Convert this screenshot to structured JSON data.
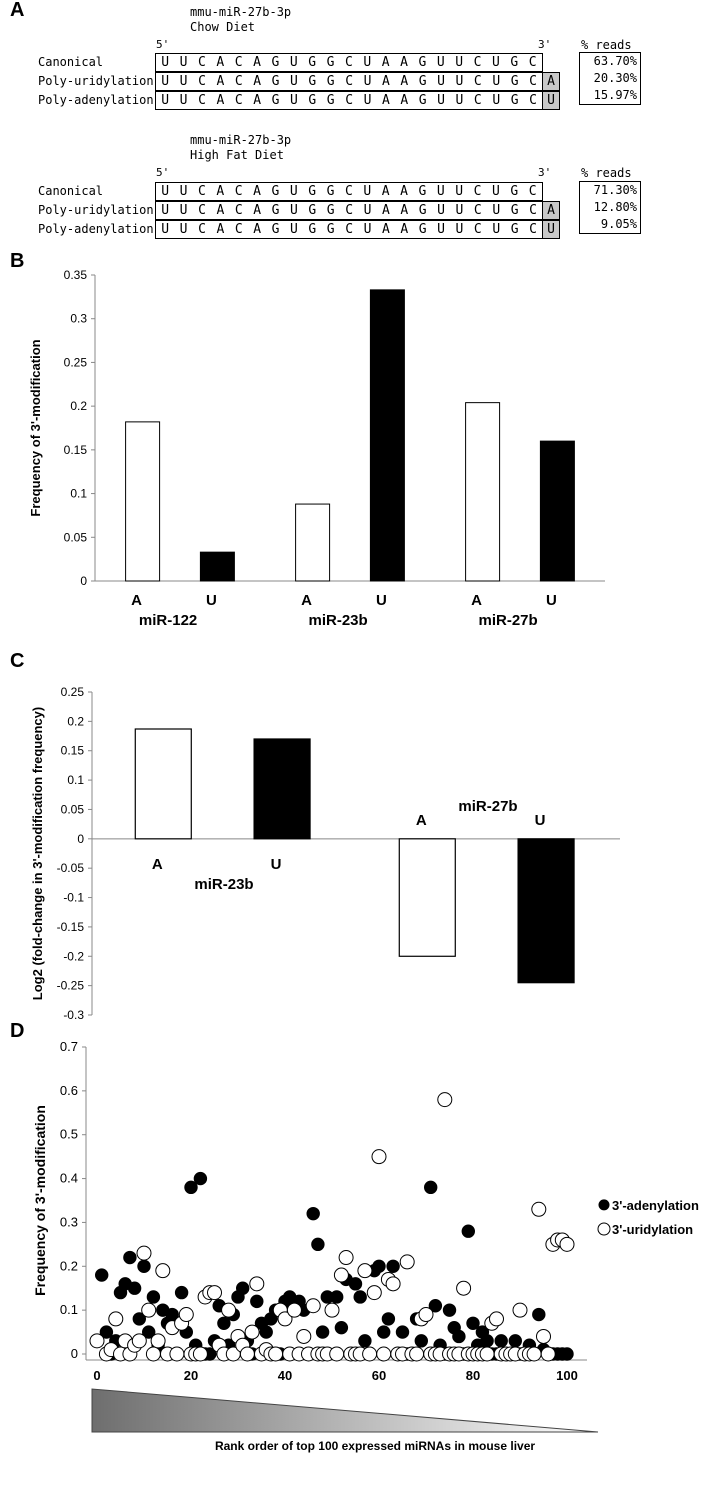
{
  "panelA": {
    "letter": "A",
    "blocks": [
      {
        "title_line1": "mmu-miR-27b-3p",
        "title_line2": "Chow Diet",
        "five_prime": "5'",
        "three_prime": "3'",
        "pct_header": "% reads",
        "rows": [
          {
            "label": "Canonical",
            "mod": "",
            "pct": "63.70%"
          },
          {
            "label": "Poly-uridylation",
            "mod": "A",
            "pct": "20.30%"
          },
          {
            "label": "Poly-adenylation",
            "mod": "U",
            "pct": "15.97%"
          }
        ]
      },
      {
        "title_line1": "mmu-miR-27b-3p",
        "title_line2": "High Fat Diet",
        "five_prime": "5'",
        "three_prime": "3'",
        "pct_header": "% reads",
        "rows": [
          {
            "label": "Canonical",
            "mod": "",
            "pct": "71.30%"
          },
          {
            "label": "Poly-uridylation",
            "mod": "A",
            "pct": "12.80%"
          },
          {
            "label": "Poly-adenylation",
            "mod": "U",
            "pct": "9.05%"
          }
        ]
      }
    ],
    "sequence": [
      "U",
      "U",
      "C",
      "A",
      "C",
      "A",
      "G",
      "U",
      "G",
      "G",
      "C",
      "U",
      "A",
      "A",
      "G",
      "U",
      "U",
      "C",
      "U",
      "G",
      "C"
    ]
  },
  "chart_data": [
    {
      "panel": "B",
      "type": "bar",
      "ylabel": "Frequency of 3'-modification",
      "ylim": [
        0,
        0.35
      ],
      "yticks": [
        "0",
        "0.05",
        "0.1",
        "0.15",
        "0.2",
        "0.25",
        "0.3",
        "0.35"
      ],
      "groups": [
        "miR-122",
        "miR-23b",
        "miR-27b"
      ],
      "series": [
        {
          "name": "A",
          "fill": "#ffffff",
          "values": [
            0.182,
            0.088,
            0.204
          ]
        },
        {
          "name": "U",
          "fill": "#000000",
          "values": [
            0.033,
            0.333,
            0.16
          ]
        }
      ]
    },
    {
      "panel": "C",
      "type": "bar",
      "ylabel": "Log2 (fold-change in 3'-modification frequency)",
      "ylim": [
        -0.3,
        0.25
      ],
      "yticks": [
        "0.25",
        "0.2",
        "0.15",
        "0.1",
        "0.05",
        "0",
        "-0.05",
        "-0.1",
        "-0.15",
        "-0.2",
        "-0.25",
        "-0.3"
      ],
      "groups": [
        "miR-23b",
        "miR-27b"
      ],
      "series": [
        {
          "name": "A",
          "fill": "#ffffff",
          "values": [
            0.187,
            -0.2
          ]
        },
        {
          "name": "U",
          "fill": "#000000",
          "values": [
            0.17,
            -0.245
          ]
        }
      ]
    },
    {
      "panel": "D",
      "type": "scatter",
      "ylabel": "Frequency of 3'-modification",
      "xlabel": "Rank order of top 100 expressed miRNAs in mouse liver",
      "xlim": [
        0,
        100
      ],
      "ylim": [
        0,
        0.7
      ],
      "xticks": [
        "0",
        "20",
        "40",
        "60",
        "80",
        "100"
      ],
      "yticks": [
        "0",
        "0.1",
        "0.2",
        "0.3",
        "0.4",
        "0.5",
        "0.6",
        "0.7"
      ],
      "legend_position": "right",
      "series": [
        {
          "name": "3'-adenylation",
          "marker": "filled",
          "points": [
            [
              1,
              0.18
            ],
            [
              2,
              0.05
            ],
            [
              3,
              0.0
            ],
            [
              4,
              0.03
            ],
            [
              5,
              0.14
            ],
            [
              6,
              0.16
            ],
            [
              7,
              0.22
            ],
            [
              8,
              0.15
            ],
            [
              9,
              0.08
            ],
            [
              10,
              0.2
            ],
            [
              11,
              0.05
            ],
            [
              12,
              0.13
            ],
            [
              13,
              0.02
            ],
            [
              14,
              0.1
            ],
            [
              15,
              0.07
            ],
            [
              16,
              0.09
            ],
            [
              17,
              0.0
            ],
            [
              18,
              0.14
            ],
            [
              19,
              0.05
            ],
            [
              20,
              0.38
            ],
            [
              21,
              0.02
            ],
            [
              22,
              0.4
            ],
            [
              23,
              0.0
            ],
            [
              24,
              0.0
            ],
            [
              25,
              0.03
            ],
            [
              26,
              0.11
            ],
            [
              27,
              0.07
            ],
            [
              28,
              0.02
            ],
            [
              29,
              0.09
            ],
            [
              30,
              0.13
            ],
            [
              31,
              0.15
            ],
            [
              32,
              0.03
            ],
            [
              33,
              0.0
            ],
            [
              34,
              0.12
            ],
            [
              35,
              0.07
            ],
            [
              36,
              0.05
            ],
            [
              37,
              0.08
            ],
            [
              38,
              0.1
            ],
            [
              39,
              0.0
            ],
            [
              40,
              0.12
            ],
            [
              41,
              0.13
            ],
            [
              42,
              0.11
            ],
            [
              43,
              0.12
            ],
            [
              44,
              0.1
            ],
            [
              45,
              0.0
            ],
            [
              46,
              0.32
            ],
            [
              47,
              0.25
            ],
            [
              48,
              0.05
            ],
            [
              49,
              0.13
            ],
            [
              50,
              0.1
            ],
            [
              51,
              0.13
            ],
            [
              52,
              0.06
            ],
            [
              53,
              0.17
            ],
            [
              54,
              0.0
            ],
            [
              55,
              0.16
            ],
            [
              56,
              0.13
            ],
            [
              57,
              0.03
            ],
            [
              58,
              0.0
            ],
            [
              59,
              0.19
            ],
            [
              60,
              0.2
            ],
            [
              61,
              0.05
            ],
            [
              62,
              0.08
            ],
            [
              63,
              0.2
            ],
            [
              64,
              0.0
            ],
            [
              65,
              0.05
            ],
            [
              66,
              0.0
            ],
            [
              67,
              0.0
            ],
            [
              68,
              0.08
            ],
            [
              69,
              0.03
            ],
            [
              70,
              0.09
            ],
            [
              71,
              0.38
            ],
            [
              72,
              0.11
            ],
            [
              73,
              0.02
            ],
            [
              74,
              0.0
            ],
            [
              75,
              0.1
            ],
            [
              76,
              0.06
            ],
            [
              77,
              0.04
            ],
            [
              78,
              0.0
            ],
            [
              79,
              0.28
            ],
            [
              80,
              0.07
            ],
            [
              81,
              0.02
            ],
            [
              82,
              0.05
            ],
            [
              83,
              0.03
            ],
            [
              84,
              0.0
            ],
            [
              85,
              0.0
            ],
            [
              86,
              0.03
            ],
            [
              87,
              0.0
            ],
            [
              88,
              0.0
            ],
            [
              89,
              0.03
            ],
            [
              90,
              0.0
            ],
            [
              91,
              0.0
            ],
            [
              92,
              0.02
            ],
            [
              93,
              0.0
            ],
            [
              94,
              0.09
            ],
            [
              95,
              0.01
            ],
            [
              96,
              0.0
            ],
            [
              97,
              0.0
            ],
            [
              98,
              0.0
            ],
            [
              99,
              0.0
            ],
            [
              100,
              0.0
            ]
          ]
        },
        {
          "name": "3'-uridylation",
          "marker": "open",
          "points": [
            [
              0,
              0.03
            ],
            [
              2,
              0.0
            ],
            [
              3,
              0.01
            ],
            [
              4,
              0.08
            ],
            [
              5,
              0.0
            ],
            [
              6,
              0.03
            ],
            [
              7,
              0.0
            ],
            [
              8,
              0.02
            ],
            [
              9,
              0.03
            ],
            [
              10,
              0.23
            ],
            [
              11,
              0.1
            ],
            [
              12,
              0.0
            ],
            [
              13,
              0.03
            ],
            [
              14,
              0.19
            ],
            [
              15,
              0.0
            ],
            [
              16,
              0.06
            ],
            [
              17,
              0.0
            ],
            [
              18,
              0.07
            ],
            [
              19,
              0.09
            ],
            [
              20,
              0.0
            ],
            [
              21,
              0.0
            ],
            [
              22,
              0.0
            ],
            [
              23,
              0.13
            ],
            [
              24,
              0.14
            ],
            [
              25,
              0.14
            ],
            [
              26,
              0.02
            ],
            [
              27,
              0.0
            ],
            [
              28,
              0.1
            ],
            [
              29,
              0.0
            ],
            [
              30,
              0.04
            ],
            [
              31,
              0.02
            ],
            [
              32,
              0.0
            ],
            [
              33,
              0.05
            ],
            [
              34,
              0.16
            ],
            [
              35,
              0.0
            ],
            [
              36,
              0.01
            ],
            [
              37,
              0.0
            ],
            [
              38,
              0.0
            ],
            [
              39,
              0.1
            ],
            [
              40,
              0.08
            ],
            [
              41,
              0.0
            ],
            [
              42,
              0.1
            ],
            [
              43,
              0.0
            ],
            [
              44,
              0.04
            ],
            [
              45,
              0.0
            ],
            [
              46,
              0.11
            ],
            [
              47,
              0.0
            ],
            [
              48,
              0.0
            ],
            [
              49,
              0.0
            ],
            [
              50,
              0.1
            ],
            [
              51,
              0.0
            ],
            [
              52,
              0.18
            ],
            [
              53,
              0.22
            ],
            [
              54,
              0.0
            ],
            [
              55,
              0.0
            ],
            [
              56,
              0.0
            ],
            [
              57,
              0.19
            ],
            [
              58,
              0.0
            ],
            [
              59,
              0.14
            ],
            [
              60,
              0.45
            ],
            [
              61,
              0.0
            ],
            [
              62,
              0.17
            ],
            [
              63,
              0.16
            ],
            [
              64,
              0.0
            ],
            [
              65,
              0.0
            ],
            [
              66,
              0.21
            ],
            [
              67,
              0.0
            ],
            [
              68,
              0.0
            ],
            [
              69,
              0.08
            ],
            [
              70,
              0.09
            ],
            [
              71,
              0.0
            ],
            [
              72,
              0.0
            ],
            [
              73,
              0.0
            ],
            [
              74,
              0.58
            ],
            [
              75,
              0.0
            ],
            [
              76,
              0.0
            ],
            [
              77,
              0.0
            ],
            [
              78,
              0.15
            ],
            [
              79,
              0.0
            ],
            [
              80,
              0.0
            ],
            [
              81,
              0.0
            ],
            [
              82,
              0.0
            ],
            [
              83,
              0.0
            ],
            [
              84,
              0.07
            ],
            [
              85,
              0.08
            ],
            [
              86,
              0.0
            ],
            [
              87,
              0.0
            ],
            [
              88,
              0.0
            ],
            [
              89,
              0.0
            ],
            [
              90,
              0.1
            ],
            [
              91,
              0.0
            ],
            [
              92,
              0.0
            ],
            [
              93,
              0.0
            ],
            [
              94,
              0.33
            ],
            [
              95,
              0.04
            ],
            [
              96,
              0.0
            ],
            [
              97,
              0.25
            ],
            [
              98,
              0.26
            ],
            [
              99,
              0.26
            ],
            [
              100,
              0.25
            ]
          ]
        }
      ]
    }
  ]
}
